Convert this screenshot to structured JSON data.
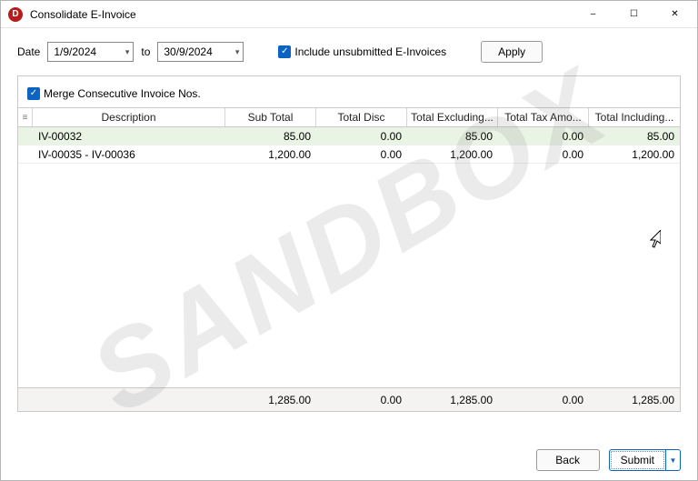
{
  "watermark": "SANDBOX",
  "window": {
    "title": "Consolidate E-Invoice",
    "app_glyph": "D"
  },
  "filter": {
    "date_label": "Date",
    "date_from": "1/9/2024",
    "to_label": "to",
    "date_to": "30/9/2024",
    "include_unsubmitted_label": "Include unsubmitted E-Invoices",
    "include_unsubmitted_checked": true,
    "apply_label": "Apply"
  },
  "panel": {
    "merge_label": "Merge Consecutive Invoice Nos.",
    "merge_checked": true
  },
  "table": {
    "columns": [
      "Description",
      "Sub Total",
      "Total Disc",
      "Total Excluding...",
      "Total Tax Amo...",
      "Total Including..."
    ],
    "rows": [
      {
        "selected": true,
        "desc": "IV-00032",
        "sub": "85.00",
        "disc": "0.00",
        "excl": "85.00",
        "tax": "0.00",
        "incl": "85.00"
      },
      {
        "selected": false,
        "desc": "IV-00035 - IV-00036",
        "sub": "1,200.00",
        "disc": "0.00",
        "excl": "1,200.00",
        "tax": "0.00",
        "incl": "1,200.00"
      }
    ],
    "footer": {
      "sub": "1,285.00",
      "disc": "0.00",
      "excl": "1,285.00",
      "tax": "0.00",
      "incl": "1,285.00"
    }
  },
  "buttons": {
    "back": "Back",
    "submit": "Submit"
  },
  "colors": {
    "accent": "#0b63c4"
  }
}
